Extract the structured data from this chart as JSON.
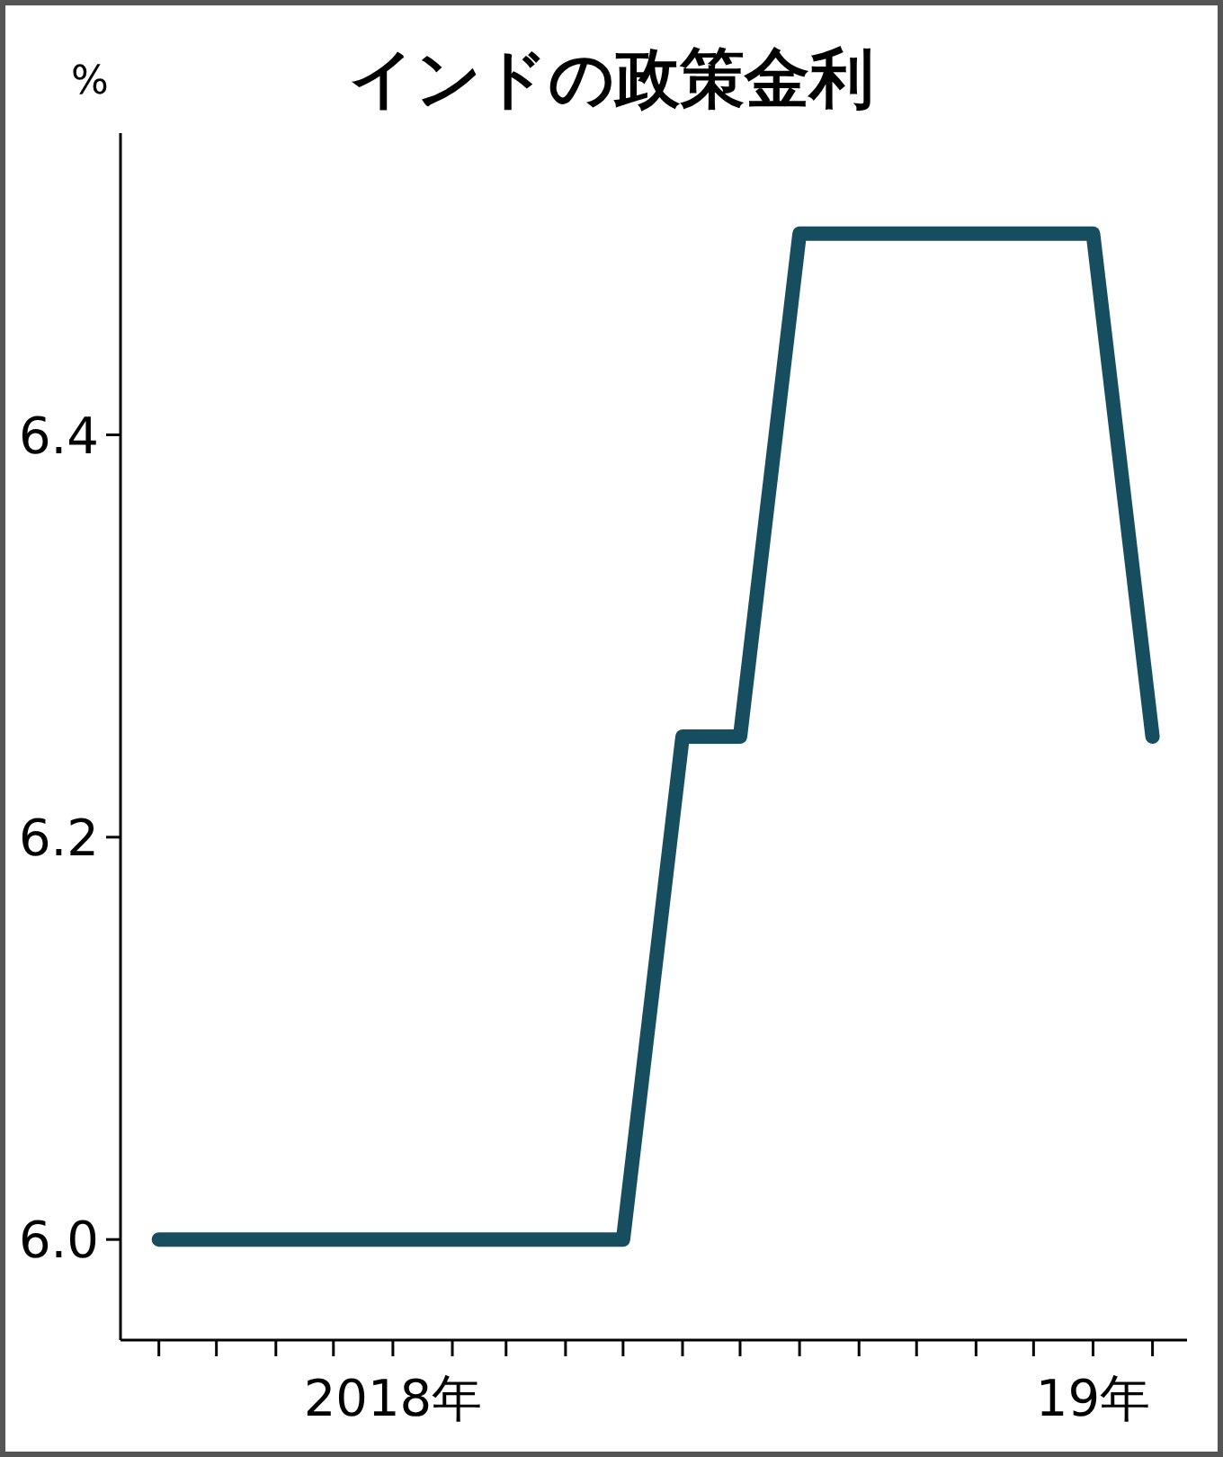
{
  "chart_data": {
    "type": "line",
    "title": "インドの政策金利",
    "ylabel": "%",
    "x": [
      "2017-09",
      "2017-10",
      "2017-11",
      "2017-12",
      "2018-01",
      "2018-02",
      "2018-03",
      "2018-04",
      "2018-05",
      "2018-06",
      "2018-07",
      "2018-08",
      "2018-09",
      "2018-10",
      "2018-11",
      "2018-12",
      "2019-01",
      "2019-02"
    ],
    "series": [
      {
        "color": "#174e5f",
        "values": [
          6.0,
          6.0,
          6.0,
          6.0,
          6.0,
          6.0,
          6.0,
          6.0,
          6.0,
          6.25,
          6.25,
          6.5,
          6.5,
          6.5,
          6.5,
          6.5,
          6.5,
          6.25
        ]
      }
    ],
    "xlim": [
      "2017-08-12",
      "2019-02-19"
    ],
    "xticks": [
      {
        "value": "2017-09",
        "label": null
      },
      {
        "value": "2017-10",
        "label": null
      },
      {
        "value": "2017-11",
        "label": null
      },
      {
        "value": "2017-12",
        "label": null
      },
      {
        "value": "2018-01",
        "label": "2018年"
      },
      {
        "value": "2018-02",
        "label": null
      },
      {
        "value": "2018-03",
        "label": null
      },
      {
        "value": "2018-04",
        "label": null
      },
      {
        "value": "2018-05",
        "label": null
      },
      {
        "value": "2018-06",
        "label": null
      },
      {
        "value": "2018-07",
        "label": null
      },
      {
        "value": "2018-08",
        "label": null
      },
      {
        "value": "2018-09",
        "label": null
      },
      {
        "value": "2018-10",
        "label": null
      },
      {
        "value": "2018-11",
        "label": null
      },
      {
        "value": "2018-12",
        "label": null
      },
      {
        "value": "2019-01",
        "label": "19年"
      },
      {
        "value": "2019-02",
        "label": null
      }
    ],
    "ylim": [
      5.95,
      6.55
    ],
    "yticks": [
      {
        "value": 6.0,
        "label": "6.0"
      },
      {
        "value": 6.2,
        "label": "6.2"
      },
      {
        "value": 6.4,
        "label": "6.4"
      }
    ],
    "grid": false,
    "marker": "none",
    "line_style": "solid"
  }
}
